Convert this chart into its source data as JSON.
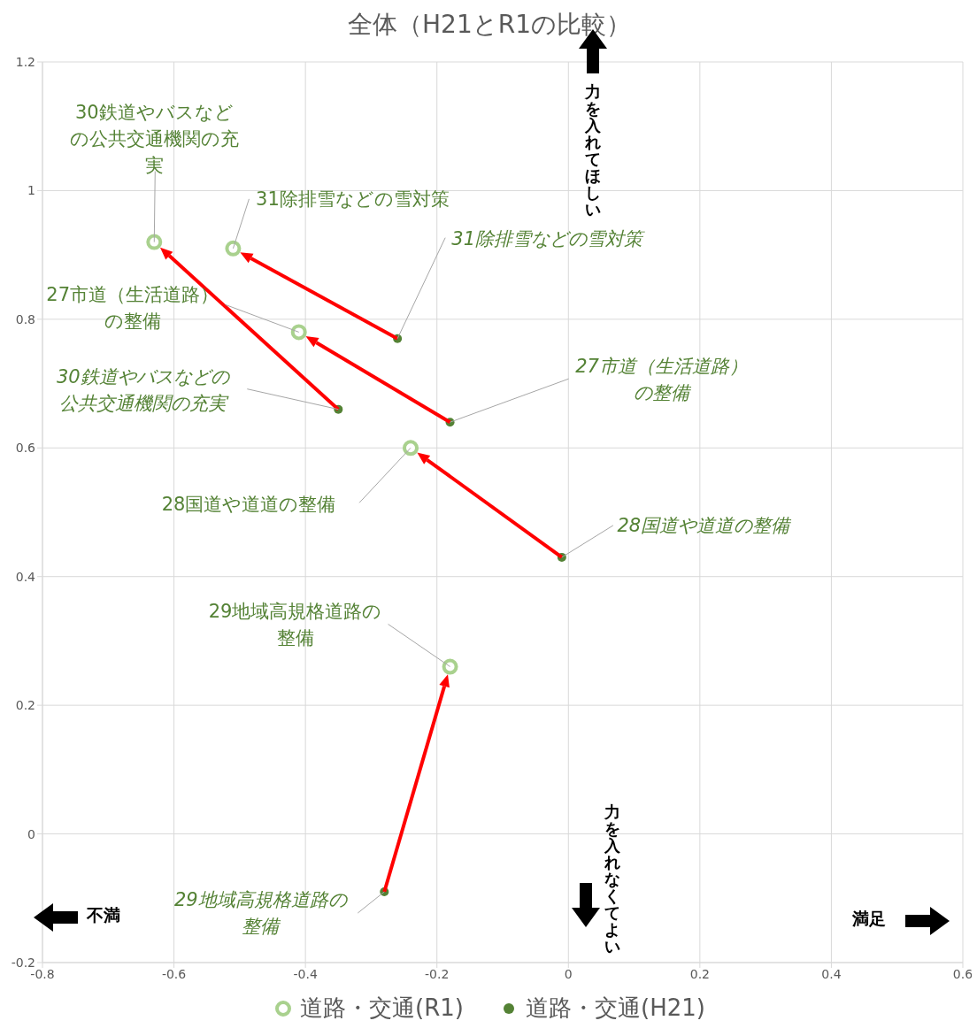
{
  "chart_data": {
    "type": "scatter",
    "title": "全体（H21とR1の比較）",
    "xlim": [
      -0.8,
      0.6
    ],
    "xticks": [
      -0.8,
      -0.6,
      -0.4,
      -0.2,
      0,
      0.2,
      0.4,
      0.6
    ],
    "ylim": [
      -0.2,
      1.2
    ],
    "yticks": [
      -0.2,
      0,
      0.2,
      0.4,
      0.6,
      0.8,
      1,
      1.2
    ],
    "grid": true,
    "legend": "bottom",
    "marker": "circle",
    "series": [
      {
        "name": "道路・交通(R1)",
        "color": "#a9d18e",
        "x": [
          -0.63,
          -0.51,
          -0.41,
          -0.24,
          -0.18
        ],
        "values": [
          0.92,
          0.91,
          0.78,
          0.6,
          0.26
        ]
      },
      {
        "name": "道路・交通(H21)",
        "color": "#548235",
        "x": [
          -0.35,
          -0.26,
          -0.18,
          -0.01,
          -0.28
        ],
        "values": [
          0.66,
          0.77,
          0.64,
          0.43,
          -0.09
        ]
      }
    ],
    "annotations": [
      {
        "text": "30鉄道やバスなどの公共交通機関の充実",
        "x": -0.63,
        "y": 0.92
      },
      {
        "text": "31除排雪などの雪対策",
        "x": -0.51,
        "y": 0.91
      },
      {
        "text": "27市道（生活道路）の整備",
        "x": -0.41,
        "y": 0.78
      },
      {
        "text": "28国道や道道の整備",
        "x": -0.24,
        "y": 0.6
      },
      {
        "text": "29地域高規格道路の整備",
        "x": -0.18,
        "y": 0.26
      },
      {
        "text": "30鉄道やバスなどの公共交通機関の充実",
        "x": -0.35,
        "y": 0.66
      },
      {
        "text": "31除排雪などの雪対策",
        "x": -0.26,
        "y": 0.77
      },
      {
        "text": "27市道（生活道路）の整備",
        "x": -0.18,
        "y": 0.64
      },
      {
        "text": "28国道や道道の整備",
        "x": -0.01,
        "y": 0.43
      },
      {
        "text": "29地域高規格道路の整備",
        "x": -0.28,
        "y": -0.09
      },
      "力を入れてほしい",
      "力を入れなくてよい",
      "不満",
      "満足"
    ]
  }
}
